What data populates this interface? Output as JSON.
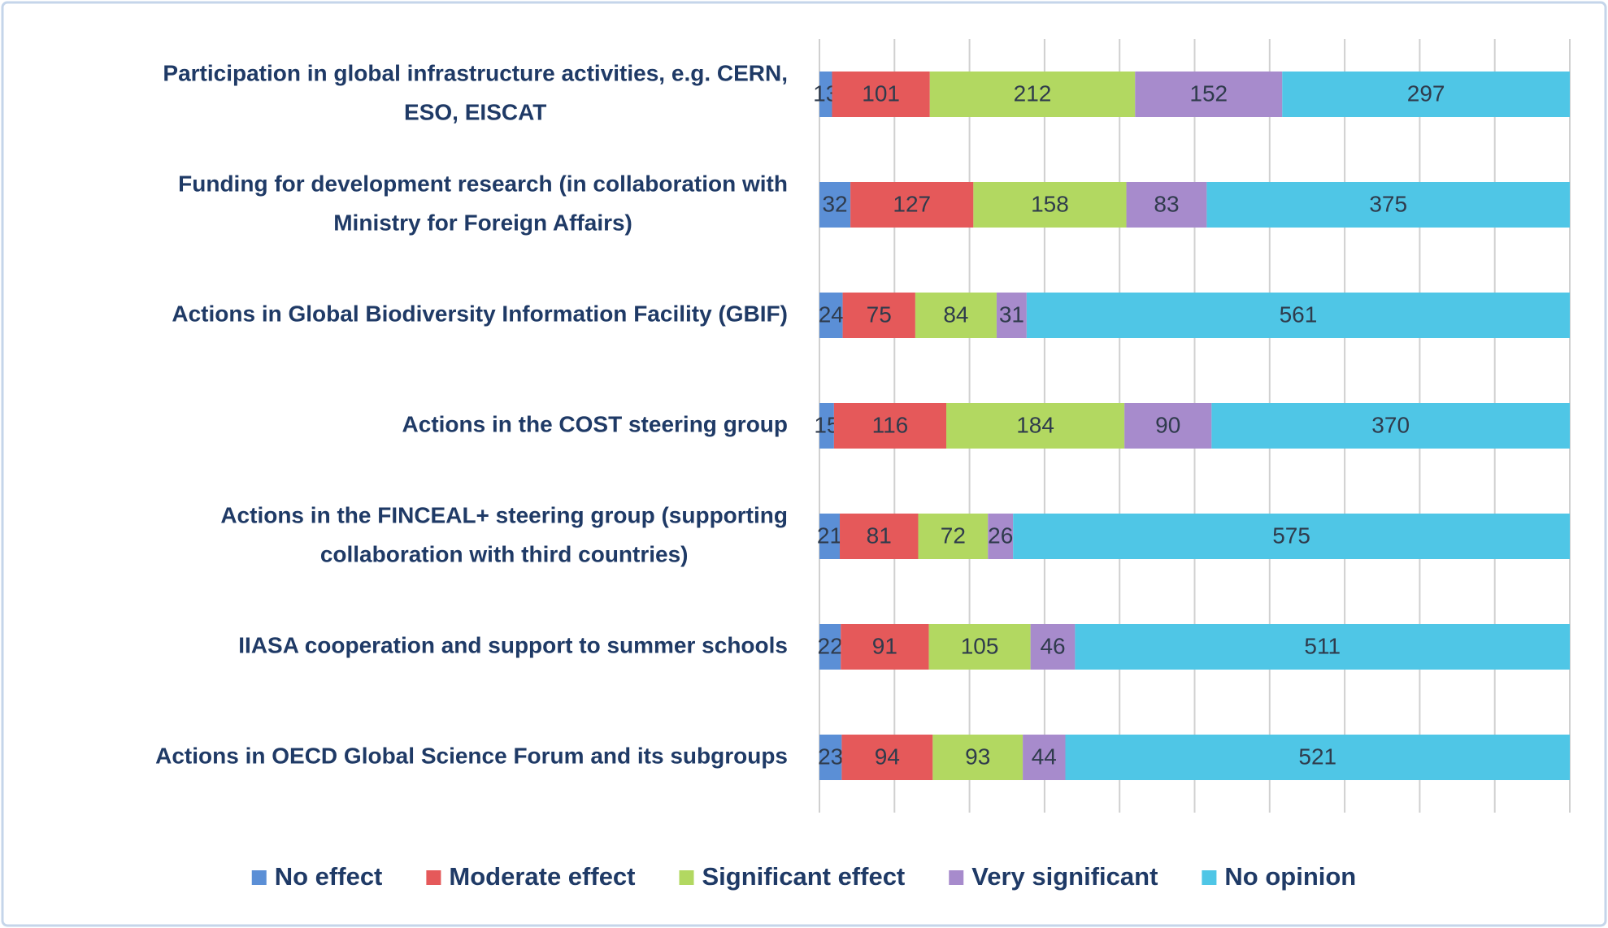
{
  "chart_data": {
    "type": "stacked_bar",
    "orientation": "horizontal",
    "stacking": "percent",
    "categories": [
      [
        "Participation in global infrastructure activities, e.g. CERN,",
        "ESO, EISCAT"
      ],
      [
        "Funding for development research (in collaboration with",
        "Ministry for Foreign Affairs)"
      ],
      [
        "Actions in Global Biodiversity Information Facility (GBIF)"
      ],
      [
        "Actions in the COST steering group"
      ],
      [
        "Actions in the FINCEAL+ steering group (supporting",
        "collaboration with third countries)"
      ],
      [
        "IIASA cooperation and support to summer schools"
      ],
      [
        "Actions in OECD Global Science Forum and its subgroups"
      ]
    ],
    "series": [
      {
        "name": "No effect",
        "color": "#5b8fd6",
        "values": [
          13,
          32,
          24,
          15,
          21,
          22,
          23
        ]
      },
      {
        "name": "Moderate effect",
        "color": "#e5595a",
        "values": [
          101,
          127,
          75,
          116,
          81,
          91,
          94
        ]
      },
      {
        "name": "Significant effect",
        "color": "#b2d861",
        "values": [
          212,
          158,
          84,
          184,
          72,
          105,
          93
        ]
      },
      {
        "name": "Very significant",
        "color": "#a78bcc",
        "values": [
          152,
          83,
          31,
          90,
          26,
          46,
          44
        ]
      },
      {
        "name": "No opinion",
        "color": "#4fc6e6",
        "values": [
          297,
          375,
          561,
          370,
          575,
          511,
          521
        ]
      }
    ],
    "xlim": [
      0,
      100
    ],
    "xticks": [
      0,
      10,
      20,
      30,
      40,
      50,
      60,
      70,
      80,
      90,
      100
    ],
    "xtick_labels": false,
    "grid": true,
    "legend": "bottom"
  }
}
